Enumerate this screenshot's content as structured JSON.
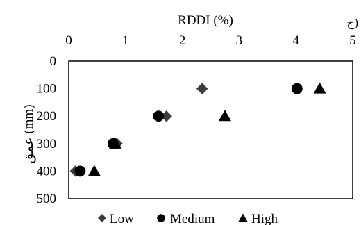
{
  "panel_label": "ج)",
  "chart_data": {
    "type": "scatter",
    "xlabel": "RDDI (%)",
    "ylabel": "عمق (mm)",
    "xlim": [
      0,
      5
    ],
    "ylim": [
      500,
      0
    ],
    "x_ticks": [
      0,
      1,
      2,
      3,
      4,
      5
    ],
    "y_ticks": [
      0,
      100,
      200,
      300,
      400,
      500
    ],
    "x_axis_position": "top",
    "y_axis_inverted": true,
    "grid": false,
    "legend_position": "bottom",
    "series": [
      {
        "name": "Low",
        "marker": "diamond",
        "color": "#3c3c3c",
        "points": [
          {
            "x": 2.35,
            "y": 100
          },
          {
            "x": 1.72,
            "y": 200
          },
          {
            "x": 0.85,
            "y": 300
          },
          {
            "x": 0.12,
            "y": 400
          }
        ]
      },
      {
        "name": "Medium",
        "marker": "circle",
        "color": "#000000",
        "points": [
          {
            "x": 4.02,
            "y": 100
          },
          {
            "x": 1.58,
            "y": 200
          },
          {
            "x": 0.78,
            "y": 300
          },
          {
            "x": 0.2,
            "y": 400
          }
        ]
      },
      {
        "name": "High",
        "marker": "triangle",
        "color": "#000000",
        "points": [
          {
            "x": 4.42,
            "y": 100
          },
          {
            "x": 2.75,
            "y": 200
          },
          {
            "x": 0.82,
            "y": 300
          },
          {
            "x": 0.45,
            "y": 400
          }
        ]
      }
    ]
  }
}
